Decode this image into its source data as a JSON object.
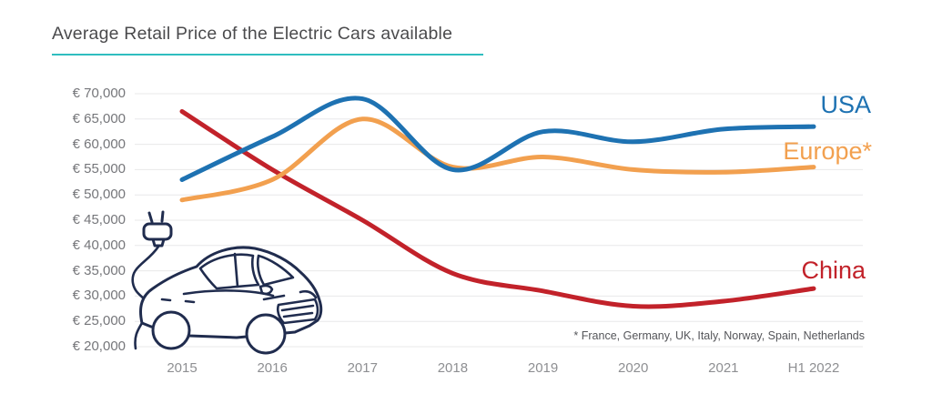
{
  "page": {
    "title": "Average Retail Price of the Electric Cars available",
    "footnote": "* France, Germany, UK, Italy, Norway, Spain, Netherlands"
  },
  "colors": {
    "accent_rule": "#2fbdbf",
    "usa": "#1e72b2",
    "europe": "#f2a04f",
    "china": "#c2222a",
    "grid": "#e8e8ea",
    "title_text": "#4b4b4d",
    "axis_text": "#75767a",
    "footnote_text": "#55565a",
    "car_ink": "#202c4e"
  },
  "decor": {
    "car_illustration": "electric-car-with-charging-plug-sketch"
  },
  "chart_data": {
    "type": "line",
    "title": "Average Retail Price of the Electric Cars available",
    "currency": "EUR",
    "categories": [
      "2015",
      "2016",
      "2017",
      "2018",
      "2019",
      "2020",
      "2021",
      "H1 2022"
    ],
    "series": [
      {
        "name": "USA",
        "color": "#1e72b2",
        "values": [
          53000,
          61500,
          69000,
          55000,
          62500,
          60500,
          63000,
          63500
        ]
      },
      {
        "name": "Europe*",
        "color": "#f2a04f",
        "values": [
          49000,
          53000,
          65000,
          55500,
          57500,
          55000,
          54500,
          55500
        ]
      },
      {
        "name": "China",
        "color": "#c2222a",
        "values": [
          66500,
          55000,
          45000,
          34500,
          31000,
          28000,
          29000,
          31500
        ]
      }
    ],
    "ylim": [
      20000,
      70000
    ],
    "y_tick_step": 5000,
    "y_tick_labels": [
      "€ 70,000",
      "€ 65,000",
      "€ 60,000",
      "€ 55,000",
      "€ 50,000",
      "€ 45,000",
      "€ 40,000",
      "€ 35,000",
      "€ 30,000",
      "€ 25,000",
      "€ 20,000"
    ],
    "grid": "horizontal",
    "legend_position": "right-end-labels",
    "annotation": "* France, Germany, UK, Italy, Norway, Spain, Netherlands"
  }
}
